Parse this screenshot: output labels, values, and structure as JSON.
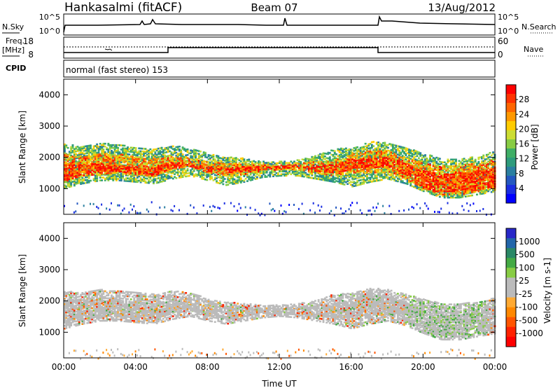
{
  "header": {
    "station": "Hankasalmi (fitACF)",
    "beam": "Beam 07",
    "date": "13/Aug/2012"
  },
  "strips": {
    "nsky_label": "N.Sky",
    "nsearch_label": "N.Search",
    "nsky_ticks": [
      "10^5",
      "10^0"
    ],
    "nsearch_ticks": [
      "10^5",
      "10^0"
    ],
    "freq_label": "Freq.",
    "freq_unit": "[MHz]",
    "freq_ticks": [
      "18",
      "8"
    ],
    "nave_label": "Nave",
    "nave_ticks": [
      "60",
      "0"
    ],
    "cpid_label": "CPID",
    "cpid_value": "normal (fast stereo) 153"
  },
  "chart_data": [
    {
      "type": "heatmap",
      "name": "power",
      "ylabel": "Slant Range [km]",
      "ylim": [
        180,
        4500
      ],
      "yticks": [
        1000,
        2000,
        3000,
        4000
      ],
      "xlim": [
        0,
        24
      ],
      "colorbar": {
        "label": "Power [dB]",
        "ticks": [
          "28",
          "24",
          "20",
          "16",
          "12",
          "8",
          "4"
        ],
        "colors": [
          "#ff0000",
          "#ff3300",
          "#ff6600",
          "#ff9900",
          "#ffcc00",
          "#ccdd33",
          "#88cc44",
          "#3fae66",
          "#2e9b7c",
          "#2a7fa0",
          "#2458c0",
          "#1a2ee0",
          "#0000ff"
        ]
      },
      "bands": [
        {
          "t": [
            0,
            1,
            2,
            3,
            4,
            5,
            6,
            7,
            8,
            9,
            10,
            11,
            12,
            13,
            14,
            15,
            16,
            17,
            18,
            19,
            20,
            21,
            22,
            23,
            24
          ],
          "lo": [
            1000,
            1150,
            1250,
            1250,
            1200,
            1150,
            1300,
            1400,
            1250,
            1100,
            1200,
            1350,
            1400,
            1400,
            1300,
            1200,
            1050,
            1200,
            1300,
            1150,
            900,
            700,
            700,
            800,
            900
          ],
          "hi": [
            2400,
            2350,
            2450,
            2400,
            2300,
            2250,
            2350,
            2300,
            2100,
            2000,
            1950,
            1850,
            1850,
            1900,
            2050,
            2250,
            2300,
            2500,
            2450,
            2300,
            2100,
            1950,
            1950,
            2000,
            2200
          ],
          "level": 0.45
        },
        {
          "t": [
            0,
            1,
            2,
            3,
            4,
            5,
            6,
            7,
            8,
            9,
            10,
            11,
            12,
            13,
            14,
            15,
            16,
            17,
            18,
            19,
            20,
            21,
            22,
            23,
            24
          ],
          "lo": [
            1200,
            1400,
            1450,
            1500,
            1400,
            1400,
            1600,
            1700,
            1500,
            1400,
            1450,
            1550,
            1600,
            1600,
            1500,
            1400,
            1500,
            1500,
            1500,
            1300,
            1000,
            800,
            800,
            900,
            1000
          ],
          "hi": [
            2100,
            2000,
            2100,
            2100,
            2000,
            1950,
            2000,
            1950,
            1850,
            1800,
            1800,
            1750,
            1750,
            1800,
            1850,
            1900,
            2100,
            2200,
            2200,
            2000,
            1800,
            1700,
            1750,
            1800,
            1900
          ],
          "level": 0.75
        },
        {
          "t": [
            0,
            1,
            2,
            3,
            4,
            5,
            6,
            7,
            8,
            9,
            10,
            11,
            12,
            13,
            14,
            15,
            16,
            17,
            18,
            19,
            20,
            21,
            22,
            23,
            24
          ],
          "lo": [
            1250,
            1400,
            1550,
            1550,
            1450,
            1400,
            1650,
            1700,
            1550,
            1500,
            1550,
            1600,
            1650,
            1650,
            1550,
            1500,
            1600,
            1650,
            1700,
            1450,
            1000,
            900,
            900,
            1000,
            1050
          ],
          "hi": [
            1800,
            1750,
            1800,
            1750,
            1700,
            1700,
            1850,
            1800,
            1700,
            1650,
            1700,
            1700,
            1700,
            1700,
            1700,
            1750,
            1950,
            1950,
            2000,
            1800,
            1550,
            1450,
            1500,
            1550,
            1600
          ],
          "level": 0.95
        }
      ],
      "noise": {
        "ymin": 180,
        "ymax": 600,
        "level": 0.2
      }
    },
    {
      "type": "heatmap",
      "name": "velocity",
      "ylabel": "Slant Range [km]",
      "xlabel": "Time UT",
      "ylim": [
        180,
        4500
      ],
      "yticks": [
        1000,
        2000,
        3000,
        4000
      ],
      "xlim": [
        0,
        24
      ],
      "xticks": [
        "00:00",
        "04:00",
        "08:00",
        "12:00",
        "16:00",
        "20:00",
        "00:00"
      ],
      "xtick_values": [
        0,
        4,
        8,
        12,
        16,
        20,
        24
      ],
      "colorbar": {
        "label": "Velocity [m s-1]",
        "ticks": [
          "1000",
          "500",
          "100",
          "25",
          "-25",
          "-100",
          "-500",
          "-1000"
        ],
        "colors": [
          "#2828c8",
          "#2266aa",
          "#2a8866",
          "#44aa44",
          "#88cc44",
          "#bbbbbb",
          "#bbbbbb",
          "#ffaa33",
          "#ff8800",
          "#ff5500",
          "#ff2200",
          "#ff0000"
        ]
      },
      "bands": [
        {
          "t": [
            0,
            1,
            2,
            3,
            4,
            5,
            6,
            7,
            8,
            9,
            10,
            11,
            12,
            13,
            14,
            15,
            16,
            17,
            18,
            19,
            20,
            21,
            22,
            23,
            24
          ],
          "lo": [
            1100,
            1250,
            1350,
            1350,
            1300,
            1250,
            1400,
            1500,
            1350,
            1250,
            1350,
            1450,
            1500,
            1450,
            1350,
            1250,
            1100,
            1250,
            1350,
            1200,
            950,
            750,
            750,
            850,
            950
          ],
          "hi": [
            2300,
            2250,
            2350,
            2300,
            2250,
            2200,
            2300,
            2250,
            2050,
            1950,
            1900,
            1850,
            1850,
            1900,
            2000,
            2200,
            2250,
            2400,
            2350,
            2200,
            2050,
            1900,
            1900,
            1950,
            2100
          ],
          "level": 0.5
        },
        {
          "t": [
            0,
            1,
            2,
            3,
            4,
            5,
            6,
            7,
            8,
            9,
            10,
            11,
            12,
            13,
            14,
            15,
            16,
            17,
            18,
            19,
            20,
            21,
            22,
            23,
            24
          ],
          "lo": [
            1250,
            1400,
            1500,
            1500,
            1450,
            1400,
            1600,
            1700,
            1500,
            1450,
            1500,
            1600,
            1650,
            1600,
            1500,
            1450,
            1500,
            1550,
            1550,
            1350,
            1000,
            850,
            850,
            950,
            1000
          ],
          "hi": [
            2050,
            2000,
            2050,
            2000,
            1950,
            1950,
            2000,
            1950,
            1850,
            1800,
            1800,
            1750,
            1750,
            1800,
            1850,
            1900,
            2050,
            2150,
            2150,
            1950,
            1750,
            1650,
            1700,
            1750,
            1850
          ],
          "level": 0.5
        }
      ],
      "noise": {
        "ymin": 180,
        "ymax": 500,
        "level": 0.5
      }
    }
  ]
}
